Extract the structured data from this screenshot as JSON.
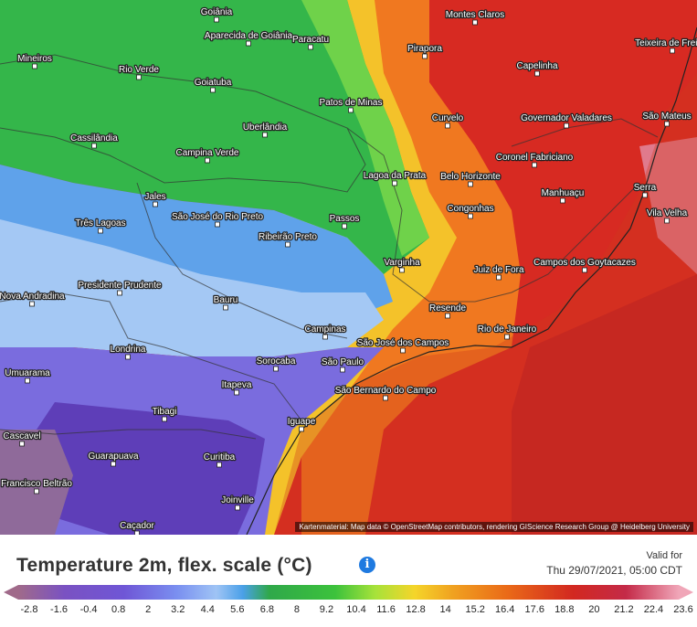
{
  "map": {
    "cities": [
      {
        "name": "Goiânia"
      },
      {
        "name": "Aparecida de Goiânia"
      },
      {
        "name": "Paracatu"
      },
      {
        "name": "Montes Claros"
      },
      {
        "name": "Teixeira de Freitas"
      },
      {
        "name": "Mineiros"
      },
      {
        "name": "Rio Verde"
      },
      {
        "name": "Goiatuba"
      },
      {
        "name": "Pirapora"
      },
      {
        "name": "Capelinha"
      },
      {
        "name": "Patos de Minas"
      },
      {
        "name": "Curvelo"
      },
      {
        "name": "Governador Valadares"
      },
      {
        "name": "São Mateus"
      },
      {
        "name": "Cassilândia"
      },
      {
        "name": "Uberlândia"
      },
      {
        "name": "Campina Verde"
      },
      {
        "name": "Coronel Fabriciano"
      },
      {
        "name": "Lagoa da Prata"
      },
      {
        "name": "Belo Horizonte"
      },
      {
        "name": "Serra"
      },
      {
        "name": "Jales"
      },
      {
        "name": "Manhuaçu"
      },
      {
        "name": "Vila Velha"
      },
      {
        "name": "Três Lagoas"
      },
      {
        "name": "São José do Rio Preto"
      },
      {
        "name": "Passos"
      },
      {
        "name": "Congonhas"
      },
      {
        "name": "Ribeirão Preto"
      },
      {
        "name": "Campos dos Goytacazes"
      },
      {
        "name": "Varginha"
      },
      {
        "name": "Juiz de Fora"
      },
      {
        "name": "Presidente Prudente"
      },
      {
        "name": "Nova Andradina"
      },
      {
        "name": "Bauru"
      },
      {
        "name": "Resende"
      },
      {
        "name": "Campinas"
      },
      {
        "name": "São José dos Campos"
      },
      {
        "name": "Rio de Janeiro"
      },
      {
        "name": "Londrina"
      },
      {
        "name": "Sorocaba"
      },
      {
        "name": "São Paulo"
      },
      {
        "name": "Umuarama"
      },
      {
        "name": "Itapeva"
      },
      {
        "name": "São Bernardo do Campo"
      },
      {
        "name": "Tibagi"
      },
      {
        "name": "Cascavel"
      },
      {
        "name": "Iguape"
      },
      {
        "name": "Guarapuava"
      },
      {
        "name": "Curitiba"
      },
      {
        "name": "Francisco Beltrão"
      },
      {
        "name": "Joinville"
      },
      {
        "name": "Caçador"
      }
    ],
    "attribution": "Kartenmaterial: Map data © OpenStreetMap contributors, rendering GIScience Research Group @ Heidelberg University"
  },
  "legend": {
    "title": "Temperature 2m, flex. scale (°C)",
    "info_icon": "info-icon",
    "valid_label": "Valid for",
    "valid_time": "Thu 29/07/2021, 05:00 CDT",
    "ticks": [
      "-2.8",
      "-1.6",
      "-0.4",
      "0.8",
      "2",
      "3.2",
      "4.4",
      "5.6",
      "6.8",
      "8",
      "9.2",
      "10.4",
      "11.6",
      "12.8",
      "14",
      "15.2",
      "16.4",
      "17.6",
      "18.8",
      "20",
      "21.2",
      "22.4",
      "23.6"
    ],
    "min": -4,
    "max": 24
  },
  "colors": {
    "cold": "#6a4bc4",
    "cool": "#6fa0f0",
    "mild": "#2fb84a",
    "warm": "#f07a1a",
    "hot": "#d32020",
    "hottest": "#e88aa0"
  }
}
